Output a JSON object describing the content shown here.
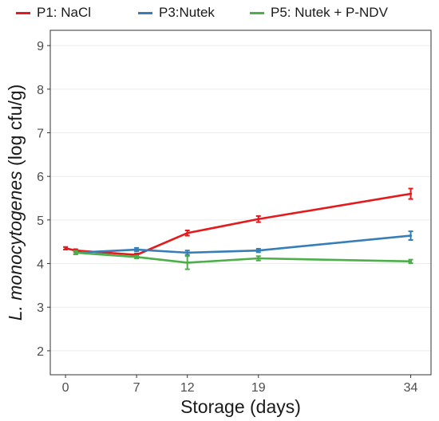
{
  "chart_data": {
    "type": "line",
    "xlabel": "Storage (days)",
    "ylabel_italic": "L. monocytogenes",
    "ylabel_rest": " (log cfu/g)",
    "x_ticks": [
      0,
      7,
      12,
      19,
      34
    ],
    "y_ticks": [
      2,
      3,
      4,
      5,
      6,
      7,
      8,
      9
    ],
    "xlim": [
      -1.5,
      36
    ],
    "ylim": [
      1.45,
      9.35
    ],
    "grid": "horizontal",
    "legend_position": "top",
    "series": [
      {
        "name": "P1: NaCl",
        "color": "#e41a1c",
        "x": [
          0,
          1,
          7,
          12,
          19,
          34
        ],
        "y": [
          4.35,
          4.3,
          4.2,
          4.7,
          5.02,
          5.6
        ],
        "err": [
          0.03,
          0.03,
          0.03,
          0.06,
          0.07,
          0.12
        ]
      },
      {
        "name": "P3:Nutek",
        "color": "#377eb8",
        "x": [
          1,
          7,
          12,
          19,
          34
        ],
        "y": [
          4.25,
          4.32,
          4.25,
          4.3,
          4.64
        ],
        "err": [
          0.03,
          0.04,
          0.05,
          0.04,
          0.1
        ]
      },
      {
        "name": "P5: Nutek + P-NDV",
        "color": "#4daf4a",
        "x": [
          1,
          7,
          12,
          19,
          34
        ],
        "y": [
          4.25,
          4.15,
          4.02,
          4.12,
          4.05
        ],
        "err": [
          0.04,
          0.03,
          0.15,
          0.05,
          0.04
        ]
      }
    ]
  }
}
